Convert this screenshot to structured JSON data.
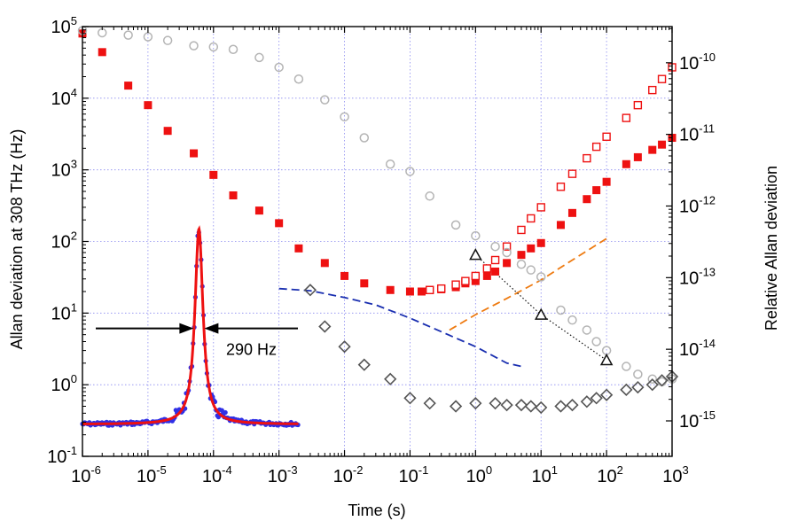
{
  "chart_data": {
    "type": "scatter",
    "title": "",
    "xlabel": "Time (s)",
    "ylabel": "Allan deviation at 308 THz (Hz)",
    "y2label": "Relative Allan deviation",
    "xscale": "log",
    "yscale": "log",
    "xlim": [
      1e-06,
      1000
    ],
    "ylim": [
      0.1,
      100000
    ],
    "y2lim": [
      3.2e-16,
      3.2e-10
    ],
    "grid": true,
    "x_ticks": [
      {
        "value": 1e-06,
        "base": "10",
        "exp": "-6"
      },
      {
        "value": 1e-05,
        "base": "10",
        "exp": "-5"
      },
      {
        "value": 0.0001,
        "base": "10",
        "exp": "-4"
      },
      {
        "value": 0.001,
        "base": "10",
        "exp": "-3"
      },
      {
        "value": 0.01,
        "base": "10",
        "exp": "-2"
      },
      {
        "value": 0.1,
        "base": "10",
        "exp": "-1"
      },
      {
        "value": 1,
        "base": "10",
        "exp": "0"
      },
      {
        "value": 10,
        "base": "10",
        "exp": "1"
      },
      {
        "value": 100,
        "base": "10",
        "exp": "2"
      },
      {
        "value": 1000,
        "base": "10",
        "exp": "3"
      }
    ],
    "y_ticks": [
      {
        "value": 0.1,
        "base": "10",
        "exp": "-1"
      },
      {
        "value": 1,
        "base": "10",
        "exp": "0"
      },
      {
        "value": 10,
        "base": "10",
        "exp": "1"
      },
      {
        "value": 100,
        "base": "10",
        "exp": "2"
      },
      {
        "value": 1000,
        "base": "10",
        "exp": "3"
      },
      {
        "value": 10000,
        "base": "10",
        "exp": "4"
      },
      {
        "value": 100000,
        "base": "10",
        "exp": "5"
      }
    ],
    "y2_ticks": [
      {
        "value": 1e-15,
        "base": "10",
        "exp": "-15"
      },
      {
        "value": 1e-14,
        "base": "10",
        "exp": "-14"
      },
      {
        "value": 1e-13,
        "base": "10",
        "exp": "-13"
      },
      {
        "value": 1e-12,
        "base": "10",
        "exp": "-12"
      },
      {
        "value": 1e-11,
        "base": "10",
        "exp": "-11"
      },
      {
        "value": 1e-10,
        "base": "10",
        "exp": "-10"
      }
    ],
    "annotation": "290 Hz",
    "series": [
      {
        "name": "red filled squares",
        "marker": "square-filled",
        "color": "#ee1111",
        "x": [
          1e-06,
          2e-06,
          5e-06,
          1e-05,
          2e-05,
          5e-05,
          0.0001,
          0.0002,
          0.0005,
          0.001,
          0.002,
          0.005,
          0.01,
          0.02,
          0.05,
          0.1,
          0.15,
          0.2,
          0.3,
          0.5,
          0.7,
          1,
          1.5,
          2,
          3,
          5,
          7,
          10,
          20,
          30,
          50,
          70,
          100,
          200,
          300,
          500,
          700,
          1000
        ],
        "y": [
          80000,
          44000,
          15000,
          8000,
          3500,
          1700,
          850,
          440,
          270,
          180,
          80,
          50,
          33,
          26,
          21,
          20,
          20,
          21,
          21.5,
          23,
          26,
          28,
          33,
          38,
          50,
          65,
          80,
          95,
          170,
          250,
          390,
          520,
          680,
          1200,
          1500,
          1900,
          2250,
          2800
        ]
      },
      {
        "name": "red open squares",
        "marker": "square-open",
        "color": "#ee1111",
        "x": [
          0.2,
          0.3,
          0.5,
          0.7,
          1,
          1.5,
          2,
          3,
          5,
          7,
          10,
          20,
          30,
          50,
          70,
          100,
          200,
          300,
          500,
          700,
          1000
        ],
        "y": [
          21,
          22,
          25,
          28,
          33,
          42,
          55,
          85,
          145,
          210,
          300,
          580,
          880,
          1450,
          2100,
          2900,
          5300,
          8000,
          13000,
          18500,
          27000
        ]
      },
      {
        "name": "light grey circles",
        "marker": "circle-open",
        "color": "#b4b4b4",
        "x": [
          1e-06,
          2e-06,
          5e-06,
          1e-05,
          2e-05,
          5e-05,
          0.0001,
          0.0002,
          0.0005,
          0.001,
          0.002,
          0.005,
          0.01,
          0.02,
          0.05,
          0.1,
          0.2,
          0.5,
          1,
          2,
          3,
          5,
          7,
          10,
          20,
          30,
          50,
          70,
          100,
          200,
          300,
          500,
          700,
          1000
        ],
        "y": [
          88000,
          82000,
          76000,
          72000,
          64000,
          54000,
          52000,
          48000,
          37000,
          27000,
          18500,
          9500,
          5500,
          2800,
          1200,
          950,
          430,
          170,
          120,
          85,
          70,
          48,
          40,
          32,
          11,
          8,
          5.8,
          4,
          3,
          1.8,
          1.4,
          1.2,
          1.1,
          1.2
        ]
      },
      {
        "name": "dark grey diamonds",
        "marker": "diamond-open",
        "color": "#555555",
        "x": [
          0.003,
          0.005,
          0.01,
          0.02,
          0.05,
          0.1,
          0.2,
          0.5,
          1,
          2,
          3,
          5,
          7,
          10,
          20,
          30,
          50,
          70,
          100,
          200,
          300,
          500,
          700,
          1000
        ],
        "y": [
          21,
          6.5,
          3.4,
          1.9,
          1.2,
          0.65,
          0.55,
          0.5,
          0.55,
          0.55,
          0.52,
          0.52,
          0.5,
          0.48,
          0.5,
          0.52,
          0.58,
          0.65,
          0.72,
          0.85,
          0.92,
          1.0,
          1.15,
          1.3
        ]
      },
      {
        "name": "black triangles",
        "marker": "triangle-open",
        "color": "#111111",
        "x": [
          1,
          10,
          100
        ],
        "y": [
          65,
          9.5,
          2.2
        ]
      },
      {
        "name": "blue dashed",
        "line": "dashed",
        "color": "#1a2fb0",
        "x": [
          0.001,
          0.003,
          0.01,
          0.03,
          0.1,
          0.3,
          1,
          3,
          5
        ],
        "y": [
          22,
          20.5,
          16.5,
          13,
          8.5,
          5.5,
          3.4,
          2.0,
          1.8
        ]
      },
      {
        "name": "orange dashed",
        "line": "dashed",
        "color": "#ee7a10",
        "x": [
          0.4,
          1,
          3,
          10,
          30,
          100
        ],
        "y": [
          5.8,
          9.5,
          16,
          29,
          55,
          110
        ]
      },
      {
        "name": "black dotted",
        "line": "dotted",
        "color": "#111111",
        "x": [
          1,
          10,
          100
        ],
        "y": [
          65,
          9.5,
          2.2
        ]
      }
    ],
    "inset": {
      "description": "beat-note spectrum: blue points with red fit",
      "peak_x": 6e-05,
      "peak_height": 150,
      "baseline": 0.28,
      "width_label": "290 Hz",
      "span_x": [
        1e-06,
        0.002
      ]
    }
  }
}
